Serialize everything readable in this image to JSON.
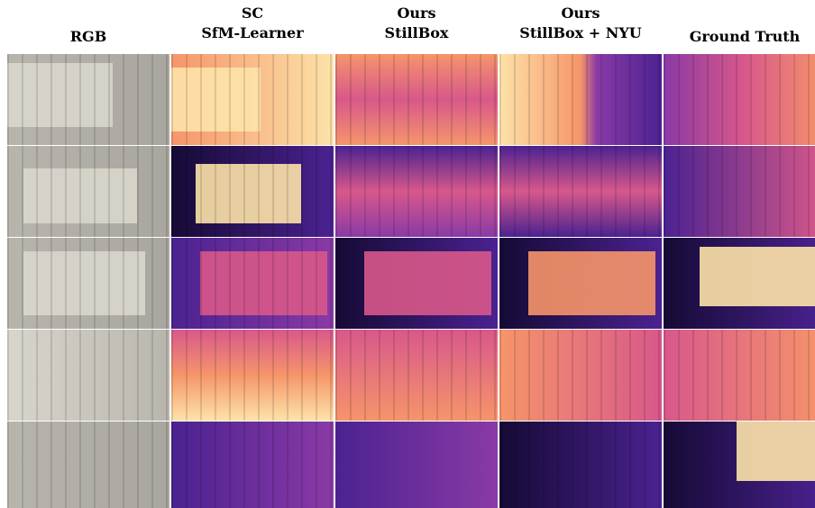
{
  "figure": {
    "columns": [
      {
        "lines": [
          "RGB"
        ]
      },
      {
        "lines": [
          "SC",
          "SfM-Learner"
        ]
      },
      {
        "lines": [
          "Ours",
          "StillBox"
        ]
      },
      {
        "lines": [
          "Ours",
          "StillBox + NYU"
        ]
      },
      {
        "lines": [
          "Ground Truth"
        ]
      }
    ]
  }
}
